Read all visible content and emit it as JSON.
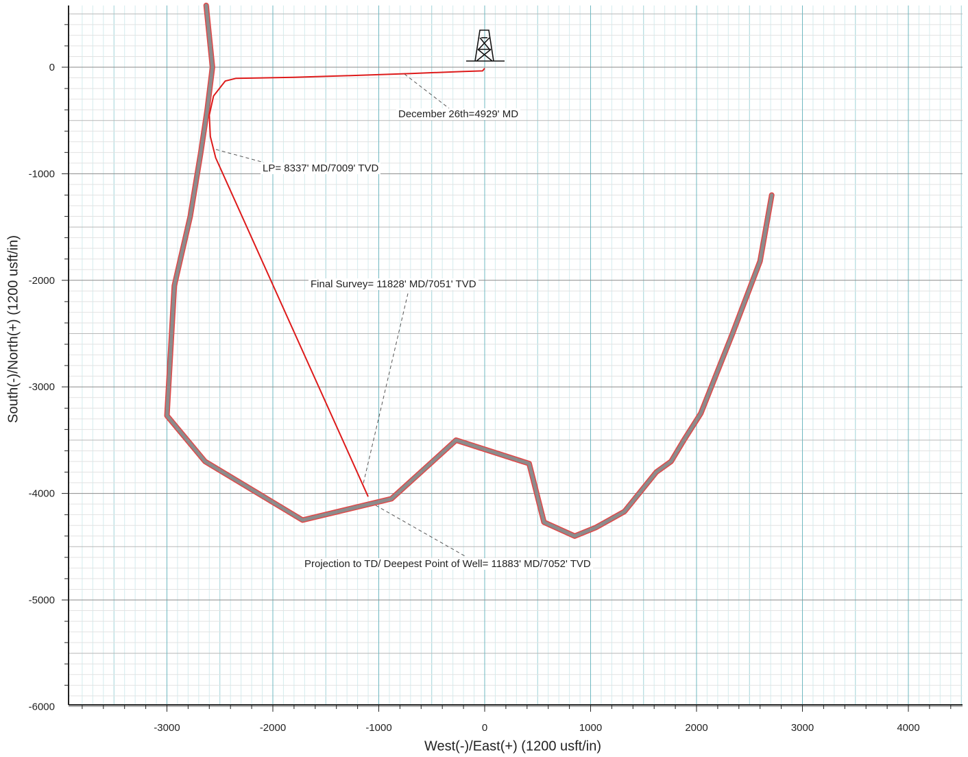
{
  "chart_data": {
    "type": "line",
    "xlabel": "West(-)/East(+) (1200 usft/in)",
    "ylabel": "South(-)/North(+) (1200 usft/in)",
    "xlim": [
      -3900,
      4500
    ],
    "ylim": [
      -6000,
      600
    ],
    "x_ticks": [
      -3000,
      -2000,
      -1000,
      0,
      1000,
      2000,
      3000,
      4000
    ],
    "y_ticks": [
      0,
      -1000,
      -2000,
      -3000,
      -4000,
      -5000,
      -6000
    ],
    "x_tick_labels": [
      "-3000",
      "-2000",
      "-1000",
      "0",
      "1000",
      "2000",
      "3000",
      "4000"
    ],
    "y_tick_labels": [
      "0",
      "-1000",
      "-2000",
      "-3000",
      "-4000",
      "-5000",
      "-6000"
    ],
    "grid": true,
    "series": [
      {
        "color": "#8c8c8c",
        "points": [
          [
            -2630,
            580
          ],
          [
            -2570,
            0
          ],
          [
            -2620,
            -400
          ],
          [
            -2680,
            -800
          ],
          [
            -2780,
            -1400
          ],
          [
            -2930,
            -2050
          ],
          [
            -2950,
            -2400
          ],
          [
            -3000,
            -3270
          ],
          [
            -2640,
            -3700
          ],
          [
            -1720,
            -4250
          ],
          [
            -880,
            -4050
          ],
          [
            -270,
            -3500
          ],
          [
            420,
            -3720
          ],
          [
            560,
            -4270
          ],
          [
            850,
            -4400
          ],
          [
            1050,
            -4320
          ],
          [
            1320,
            -4170
          ],
          [
            1620,
            -3800
          ],
          [
            1760,
            -3700
          ],
          [
            1880,
            -3500
          ],
          [
            2040,
            -3250
          ],
          [
            2340,
            -2500
          ],
          [
            2600,
            -1820
          ],
          [
            2710,
            -1200
          ]
        ]
      },
      {
        "color": "#dd1a1a",
        "points": [
          [
            0,
            -10
          ],
          [
            -20,
            -35
          ],
          [
            -200,
            -40
          ],
          [
            -700,
            -60
          ],
          [
            -1300,
            -80
          ],
          [
            -1800,
            -95
          ],
          [
            -2350,
            -105
          ],
          [
            -2450,
            -130
          ],
          [
            -2560,
            -270
          ],
          [
            -2600,
            -450
          ],
          [
            -2590,
            -650
          ],
          [
            -2540,
            -850
          ],
          [
            -1100,
            -4030
          ]
        ]
      }
    ],
    "annotations": [
      {
        "text": "December 26th=4929' MD"
      },
      {
        "text": "LP= 8337' MD/7009' TVD"
      },
      {
        "text": "Final Survey= 11828' MD/7051' TVD"
      },
      {
        "text": "Projection to TD/ Deepest Point of Well= 11883' MD/7052' TVD"
      }
    ]
  }
}
